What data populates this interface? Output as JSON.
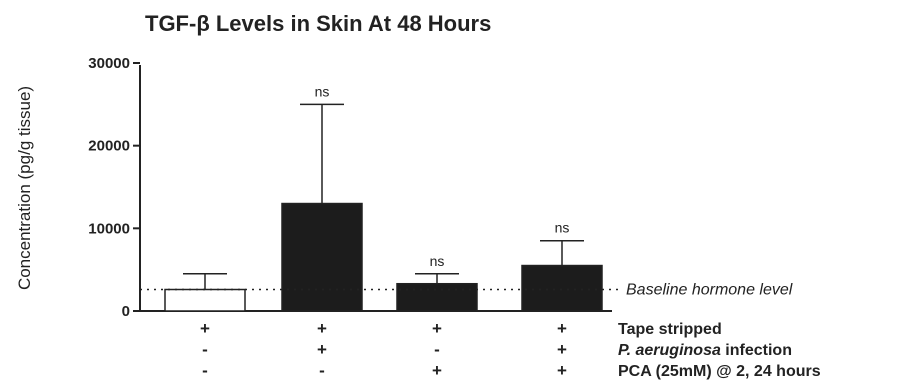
{
  "chart_data": {
    "type": "bar",
    "title": "TGF-β Levels in Skin At 48 Hours",
    "ylabel": "Concentration (pg/g tissue)",
    "ylim": [
      0,
      30000
    ],
    "yticks": [
      {
        "value": 0,
        "label": "0"
      },
      {
        "value": 10000,
        "label": "10000"
      },
      {
        "value": 20000,
        "label": "20000"
      },
      {
        "value": 30000,
        "label": "30000"
      }
    ],
    "bars": [
      {
        "value": 2600,
        "error": 4500,
        "fill": "#ffffff",
        "significance": ""
      },
      {
        "value": 13000,
        "error": 25000,
        "fill": "#1c1c1c",
        "significance": "ns"
      },
      {
        "value": 3300,
        "error": 4500,
        "fill": "#1c1c1c",
        "significance": "ns"
      },
      {
        "value": 5500,
        "error": 8500,
        "fill": "#1c1c1c",
        "significance": "ns"
      }
    ],
    "baseline": {
      "value": 2600,
      "label": "Baseline hormone level"
    },
    "conditions": [
      {
        "label": "Tape stripped",
        "italic": "",
        "rest": "",
        "symbols": [
          "+",
          "+",
          "+",
          "+"
        ]
      },
      {
        "label": "",
        "italic": "P. aeruginosa",
        "rest": " infection",
        "symbols": [
          "-",
          "+",
          "-",
          "+"
        ]
      },
      {
        "label": "PCA (25mM) @ 2, 24 hours",
        "italic": "",
        "rest": "",
        "symbols": [
          "-",
          "-",
          "+",
          "+"
        ]
      }
    ],
    "grid": false,
    "legend": "none"
  }
}
